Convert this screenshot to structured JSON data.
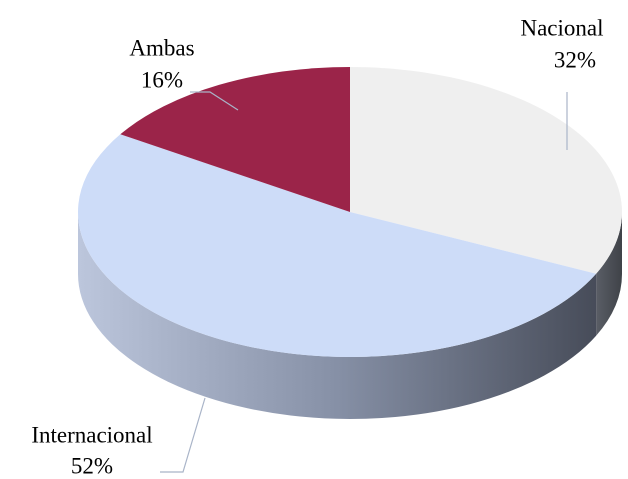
{
  "chart_data": {
    "type": "pie",
    "categories": [
      "Nacional",
      "Internacional",
      "Ambas"
    ],
    "values": [
      32,
      52,
      16
    ],
    "value_labels": [
      "32%",
      "52%",
      "16%"
    ],
    "colors": [
      "#efefef",
      "#cddcf8",
      "#9b2449"
    ]
  }
}
